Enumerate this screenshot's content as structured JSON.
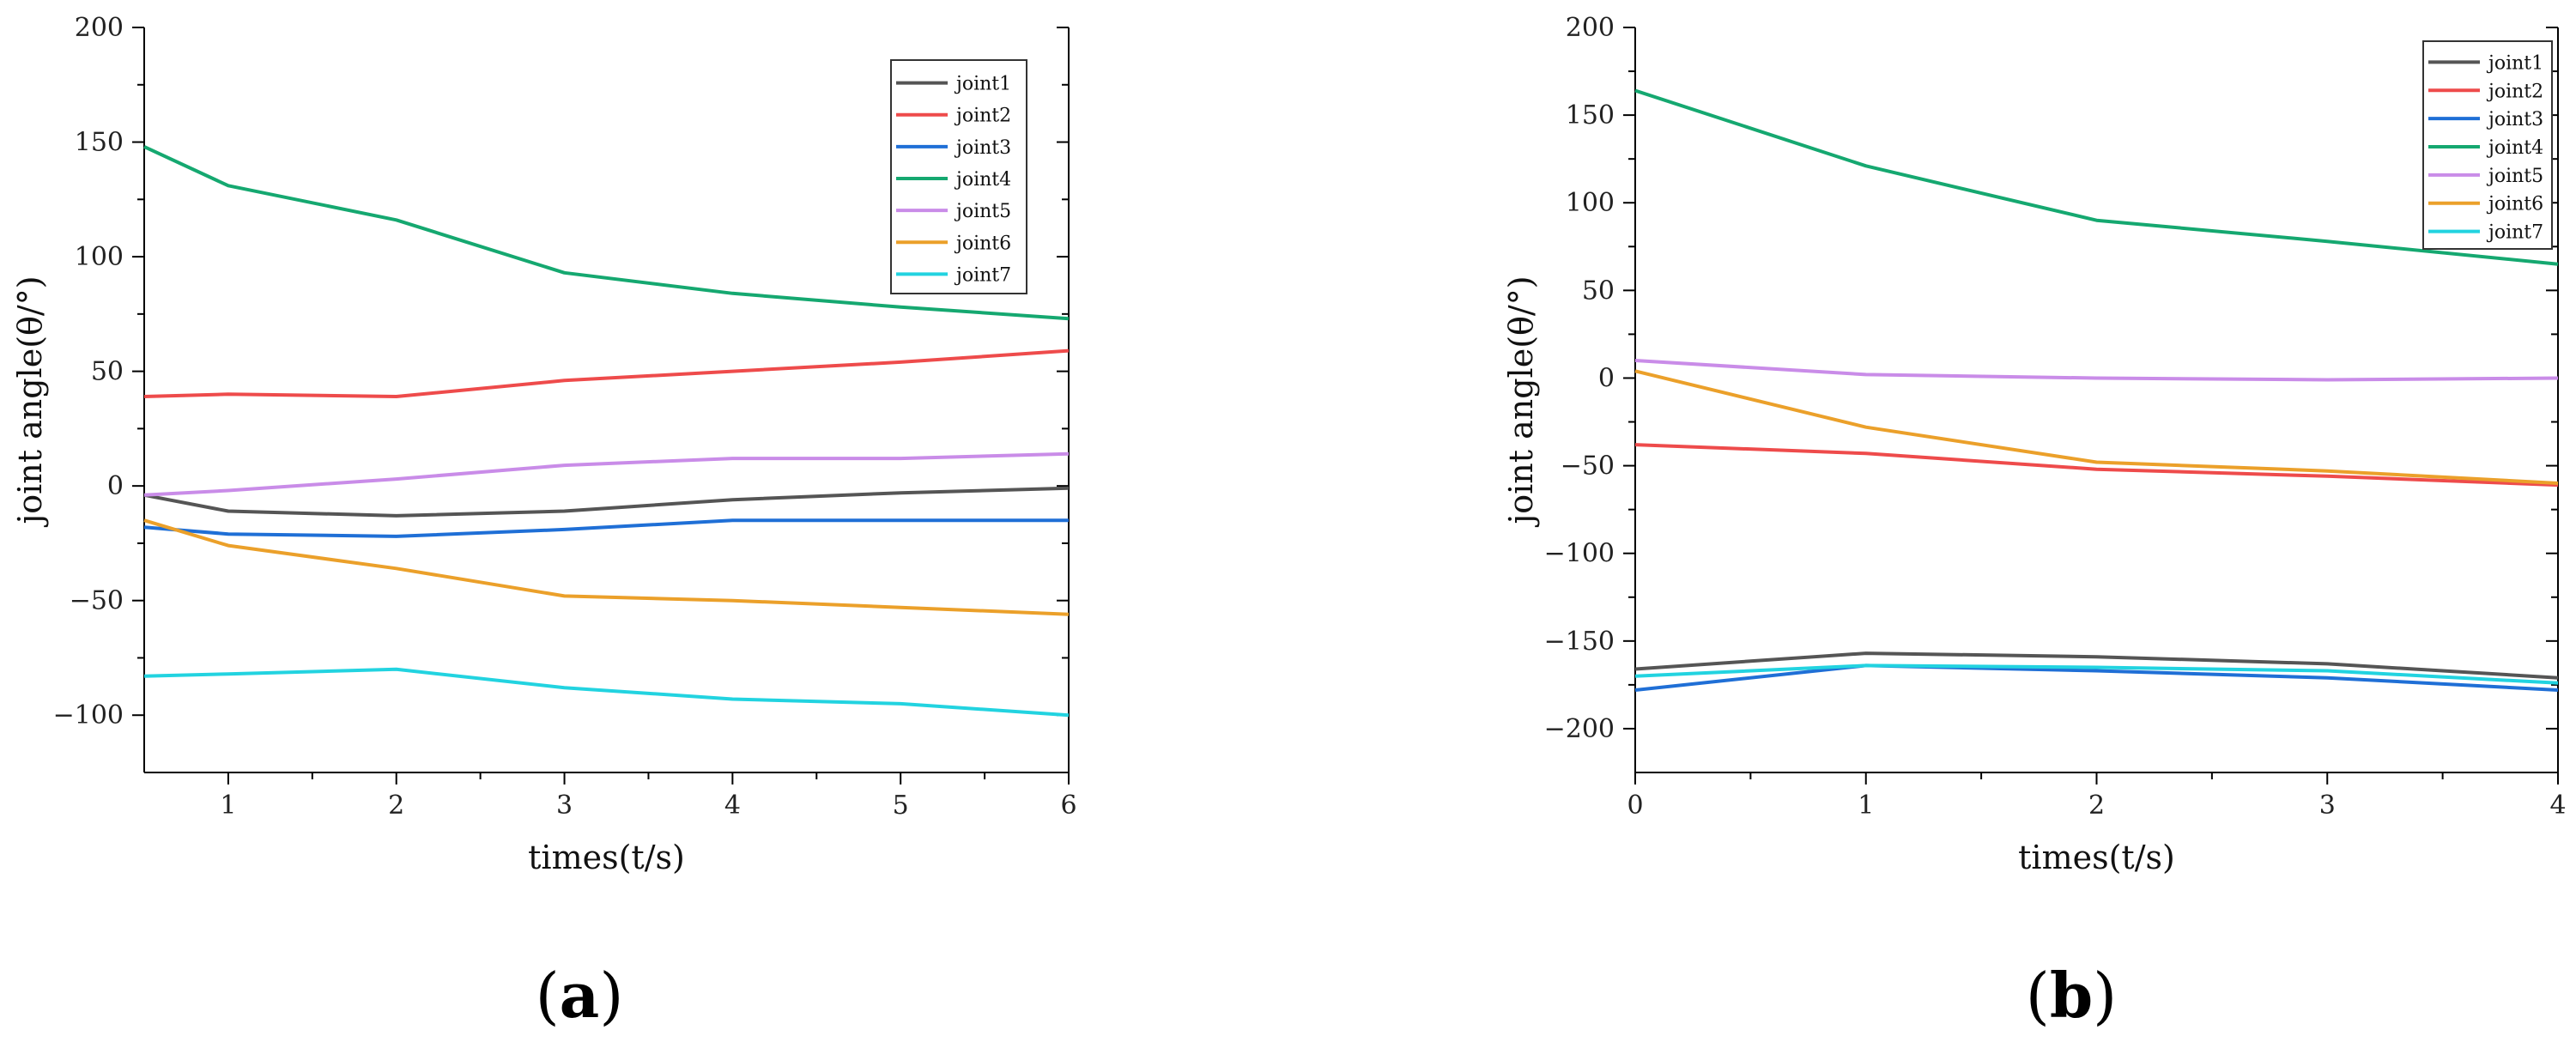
{
  "chart_data": [
    {
      "type": "line",
      "panel_label": "a",
      "title": "",
      "xlabel": "times(t/s)",
      "ylabel": "joint angle(θ/°)",
      "xlim": [
        0.5,
        6
      ],
      "ylim": [
        -125,
        200
      ],
      "xticks": [
        1,
        2,
        3,
        4,
        5,
        6
      ],
      "xtick_labels": [
        "1",
        "2",
        "3",
        "4",
        "5",
        "6"
      ],
      "yticks": [
        -100,
        -50,
        0,
        50,
        100,
        150,
        200
      ],
      "ytick_labels": [
        "−100",
        "−50",
        "0",
        "50",
        "100",
        "150",
        "200"
      ],
      "legend_position": "top-right",
      "series": [
        {
          "name": "joint1",
          "color": "#555555",
          "x": [
            0.5,
            1,
            2,
            3,
            4,
            5,
            6
          ],
          "values": [
            -4,
            -11,
            -13,
            -11,
            -6,
            -3,
            -1
          ]
        },
        {
          "name": "joint2",
          "color": "#ee4b4b",
          "x": [
            0.5,
            1,
            2,
            3,
            4,
            5,
            6
          ],
          "values": [
            39,
            40,
            39,
            46,
            50,
            54,
            59
          ]
        },
        {
          "name": "joint3",
          "color": "#1f6fd6",
          "x": [
            0.5,
            1,
            2,
            3,
            4,
            5,
            6
          ],
          "values": [
            -18,
            -21,
            -22,
            -19,
            -15,
            -15,
            -15
          ]
        },
        {
          "name": "joint4",
          "color": "#15a870",
          "x": [
            0.5,
            1,
            2,
            3,
            4,
            5,
            6
          ],
          "values": [
            148,
            131,
            116,
            93,
            84,
            78,
            73
          ]
        },
        {
          "name": "joint5",
          "color": "#c98ce8",
          "x": [
            0.5,
            1,
            2,
            3,
            4,
            5,
            6
          ],
          "values": [
            -4,
            -2,
            3,
            9,
            12,
            12,
            14
          ]
        },
        {
          "name": "joint6",
          "color": "#eba02a",
          "x": [
            0.5,
            1,
            2,
            3,
            4,
            5,
            6
          ],
          "values": [
            -15,
            -26,
            -36,
            -48,
            -50,
            -53,
            -56
          ]
        },
        {
          "name": "joint7",
          "color": "#22d3e0",
          "x": [
            0.5,
            1,
            2,
            3,
            4,
            5,
            6
          ],
          "values": [
            -83,
            -82,
            -80,
            -88,
            -93,
            -95,
            -100
          ]
        }
      ]
    },
    {
      "type": "line",
      "panel_label": "b",
      "title": "",
      "xlabel": "times(t/s)",
      "ylabel": "joint angle(θ/°)",
      "xlim": [
        0,
        4
      ],
      "ylim": [
        -225,
        200
      ],
      "xticks": [
        0,
        1,
        2,
        3,
        4
      ],
      "xtick_labels": [
        "0",
        "1",
        "2",
        "3",
        "4"
      ],
      "yticks": [
        -200,
        -150,
        -100,
        -50,
        0,
        50,
        100,
        150,
        200
      ],
      "ytick_labels": [
        "−200",
        "−150",
        "−100",
        "−50",
        "0",
        "50",
        "100",
        "150",
        "200"
      ],
      "legend_position": "top-right",
      "series": [
        {
          "name": "joint1",
          "color": "#555555",
          "x": [
            0,
            1,
            2,
            3,
            4
          ],
          "values": [
            -166,
            -157,
            -159,
            -163,
            -171
          ]
        },
        {
          "name": "joint2",
          "color": "#ee4b4b",
          "x": [
            0,
            1,
            2,
            3,
            4
          ],
          "values": [
            -38,
            -43,
            -52,
            -56,
            -61
          ]
        },
        {
          "name": "joint3",
          "color": "#1f6fd6",
          "x": [
            0,
            1,
            2,
            3,
            4
          ],
          "values": [
            -178,
            -164,
            -167,
            -171,
            -178
          ]
        },
        {
          "name": "joint4",
          "color": "#15a870",
          "x": [
            0,
            1,
            2,
            3,
            4
          ],
          "values": [
            164,
            121,
            90,
            78,
            65
          ]
        },
        {
          "name": "joint5",
          "color": "#c98ce8",
          "x": [
            0,
            1,
            2,
            3,
            4
          ],
          "values": [
            10,
            2,
            0,
            -1,
            0
          ]
        },
        {
          "name": "joint6",
          "color": "#eba02a",
          "x": [
            0,
            1,
            2,
            3,
            4
          ],
          "values": [
            4,
            -28,
            -48,
            -53,
            -60
          ]
        },
        {
          "name": "joint7",
          "color": "#22d3e0",
          "x": [
            0,
            1,
            2,
            3,
            4
          ],
          "values": [
            -170,
            -164,
            -165,
            -167,
            -174
          ]
        }
      ]
    }
  ]
}
